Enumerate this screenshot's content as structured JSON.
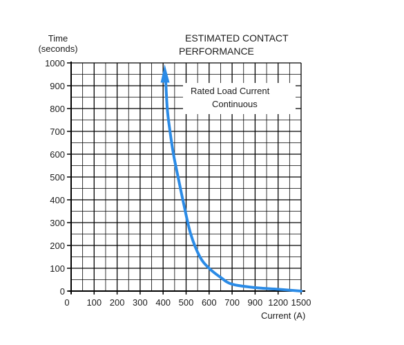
{
  "chart_data": {
    "type": "line",
    "title": "ESTIMATED CONTACT",
    "subtitle": "PERFORMANCE",
    "ylabel": [
      "Time",
      "(seconds)"
    ],
    "xlabel": "Current (A)",
    "x_ticks": [
      "0",
      "100",
      "200",
      "300",
      "400",
      "500",
      "600",
      "700",
      "900",
      "1200",
      "1500"
    ],
    "y_ticks": [
      "0",
      "100",
      "200",
      "300",
      "400",
      "500",
      "600",
      "700",
      "800",
      "900",
      "1000"
    ],
    "ylim": [
      0,
      1000
    ],
    "grid": true,
    "annotation": [
      "Rated Load Current",
      "Continuous"
    ],
    "series": [
      {
        "color": "#2b8be6",
        "x": [
          410,
          418,
          430,
          445,
          465,
          490,
          520,
          560,
          600,
          650,
          700,
          900,
          1200,
          1500
        ],
        "y": [
          950,
          800,
          700,
          600,
          500,
          380,
          250,
          150,
          100,
          60,
          30,
          15,
          8,
          0
        ]
      }
    ]
  }
}
